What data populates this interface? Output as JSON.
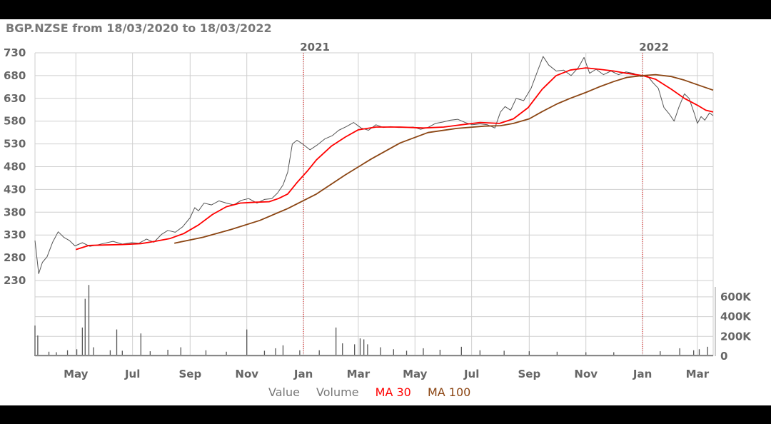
{
  "chart_data": {
    "type": "line",
    "title": "BGP.NZSE from 18/03/2020 to 18/03/2022",
    "price_axis": {
      "ticks": [
        230,
        280,
        330,
        380,
        430,
        480,
        530,
        580,
        630,
        680,
        730
      ],
      "range": [
        230,
        730
      ]
    },
    "volume_axis": {
      "ticks": [
        "0",
        "200K",
        "400K",
        "600K"
      ],
      "range": [
        0,
        700000
      ]
    },
    "x_axis": {
      "month_ticks": [
        "May",
        "Jul",
        "Sep",
        "Nov",
        "Jan",
        "Mar",
        "May",
        "Jul",
        "Sep",
        "Nov",
        "Jan",
        "Mar"
      ],
      "month_dates": [
        "2020-05-01",
        "2020-07-01",
        "2020-09-01",
        "2020-11-01",
        "2021-01-01",
        "2021-03-01",
        "2021-05-01",
        "2021-07-01",
        "2021-09-01",
        "2021-11-01",
        "2022-01-01",
        "2022-03-01"
      ],
      "year_markers": [
        {
          "label": "2021",
          "date": "2021-01-01"
        },
        {
          "label": "2022",
          "date": "2022-01-01"
        }
      ],
      "start": "2020-03-18",
      "end": "2022-03-18"
    },
    "series": [
      {
        "name": "Value",
        "color": "#555555",
        "points": [
          [
            "2020-03-18",
            318
          ],
          [
            "2020-03-22",
            245
          ],
          [
            "2020-03-26",
            270
          ],
          [
            "2020-03-31",
            282
          ],
          [
            "2020-04-06",
            314
          ],
          [
            "2020-04-12",
            337
          ],
          [
            "2020-04-18",
            325
          ],
          [
            "2020-04-24",
            318
          ],
          [
            "2020-04-30",
            306
          ],
          [
            "2020-05-08",
            313
          ],
          [
            "2020-05-16",
            305
          ],
          [
            "2020-05-24",
            308
          ],
          [
            "2020-06-01",
            312
          ],
          [
            "2020-06-10",
            316
          ],
          [
            "2020-06-20",
            310
          ],
          [
            "2020-06-30",
            313
          ],
          [
            "2020-07-08",
            312
          ],
          [
            "2020-07-16",
            321
          ],
          [
            "2020-07-24",
            314
          ],
          [
            "2020-08-01",
            331
          ],
          [
            "2020-08-08",
            340
          ],
          [
            "2020-08-16",
            336
          ],
          [
            "2020-08-24",
            348
          ],
          [
            "2020-09-01",
            368
          ],
          [
            "2020-09-06",
            390
          ],
          [
            "2020-09-10",
            383
          ],
          [
            "2020-09-16",
            400
          ],
          [
            "2020-09-24",
            396
          ],
          [
            "2020-10-02",
            405
          ],
          [
            "2020-10-10",
            400
          ],
          [
            "2020-10-18",
            396
          ],
          [
            "2020-10-26",
            406
          ],
          [
            "2020-11-03",
            410
          ],
          [
            "2020-11-12",
            400
          ],
          [
            "2020-11-20",
            408
          ],
          [
            "2020-11-28",
            410
          ],
          [
            "2020-12-04",
            422
          ],
          [
            "2020-12-10",
            440
          ],
          [
            "2020-12-15",
            468
          ],
          [
            "2020-12-20",
            530
          ],
          [
            "2020-12-25",
            538
          ],
          [
            "2020-12-31",
            530
          ],
          [
            "2021-01-08",
            517
          ],
          [
            "2021-01-16",
            528
          ],
          [
            "2021-01-24",
            541
          ],
          [
            "2021-02-01",
            548
          ],
          [
            "2021-02-08",
            560
          ],
          [
            "2021-02-16",
            568
          ],
          [
            "2021-02-24",
            577
          ],
          [
            "2021-03-04",
            565
          ],
          [
            "2021-03-12",
            560
          ],
          [
            "2021-03-20",
            572
          ],
          [
            "2021-03-28",
            566
          ],
          [
            "2021-04-05",
            568
          ],
          [
            "2021-04-13",
            566
          ],
          [
            "2021-04-21",
            566
          ],
          [
            "2021-04-29",
            567
          ],
          [
            "2021-05-07",
            562
          ],
          [
            "2021-05-15",
            566
          ],
          [
            "2021-05-23",
            575
          ],
          [
            "2021-05-31",
            578
          ],
          [
            "2021-06-08",
            582
          ],
          [
            "2021-06-16",
            584
          ],
          [
            "2021-06-24",
            577
          ],
          [
            "2021-07-02",
            572
          ],
          [
            "2021-07-10",
            574
          ],
          [
            "2021-07-18",
            572
          ],
          [
            "2021-07-26",
            565
          ],
          [
            "2021-08-01",
            600
          ],
          [
            "2021-08-06",
            612
          ],
          [
            "2021-08-12",
            604
          ],
          [
            "2021-08-18",
            630
          ],
          [
            "2021-08-26",
            625
          ],
          [
            "2021-09-03",
            652
          ],
          [
            "2021-09-10",
            690
          ],
          [
            "2021-09-16",
            722
          ],
          [
            "2021-09-22",
            703
          ],
          [
            "2021-09-30",
            690
          ],
          [
            "2021-10-08",
            692
          ],
          [
            "2021-10-16",
            680
          ],
          [
            "2021-10-24",
            698
          ],
          [
            "2021-10-30",
            720
          ],
          [
            "2021-11-05",
            685
          ],
          [
            "2021-11-12",
            694
          ],
          [
            "2021-11-20",
            682
          ],
          [
            "2021-11-28",
            690
          ],
          [
            "2021-12-06",
            682
          ],
          [
            "2021-12-14",
            688
          ],
          [
            "2021-12-22",
            685
          ],
          [
            "2021-12-30",
            678
          ],
          [
            "2022-01-06",
            680
          ],
          [
            "2022-01-12",
            665
          ],
          [
            "2022-01-18",
            652
          ],
          [
            "2022-01-24",
            610
          ],
          [
            "2022-01-30",
            595
          ],
          [
            "2022-02-04",
            580
          ],
          [
            "2022-02-09",
            610
          ],
          [
            "2022-02-15",
            640
          ],
          [
            "2022-02-20",
            630
          ],
          [
            "2022-02-26",
            595
          ],
          [
            "2022-03-01",
            575
          ],
          [
            "2022-03-05",
            590
          ],
          [
            "2022-03-09",
            582
          ],
          [
            "2022-03-14",
            598
          ],
          [
            "2022-03-18",
            592
          ]
        ]
      },
      {
        "name": "MA 30",
        "color": "#ff0000",
        "points": [
          [
            "2020-05-01",
            298
          ],
          [
            "2020-05-15",
            307
          ],
          [
            "2020-06-01",
            308
          ],
          [
            "2020-06-20",
            309
          ],
          [
            "2020-07-10",
            311
          ],
          [
            "2020-07-25",
            316
          ],
          [
            "2020-08-10",
            322
          ],
          [
            "2020-08-25",
            333
          ],
          [
            "2020-09-10",
            352
          ],
          [
            "2020-09-25",
            375
          ],
          [
            "2020-10-10",
            392
          ],
          [
            "2020-10-25",
            400
          ],
          [
            "2020-11-10",
            402
          ],
          [
            "2020-11-25",
            403
          ],
          [
            "2020-12-05",
            410
          ],
          [
            "2020-12-15",
            420
          ],
          [
            "2020-12-25",
            445
          ],
          [
            "2021-01-05",
            470
          ],
          [
            "2021-01-15",
            495
          ],
          [
            "2021-01-31",
            525
          ],
          [
            "2021-02-15",
            545
          ],
          [
            "2021-03-01",
            561
          ],
          [
            "2021-03-20",
            567
          ],
          [
            "2021-04-15",
            567
          ],
          [
            "2021-05-10",
            565
          ],
          [
            "2021-06-01",
            567
          ],
          [
            "2021-06-20",
            572
          ],
          [
            "2021-07-10",
            577
          ],
          [
            "2021-07-31",
            575
          ],
          [
            "2021-08-15",
            585
          ],
          [
            "2021-08-31",
            610
          ],
          [
            "2021-09-15",
            650
          ],
          [
            "2021-09-30",
            680
          ],
          [
            "2021-10-15",
            692
          ],
          [
            "2021-11-01",
            697
          ],
          [
            "2021-11-15",
            694
          ],
          [
            "2021-12-01",
            690
          ],
          [
            "2021-12-15",
            685
          ],
          [
            "2022-01-01",
            680
          ],
          [
            "2022-01-15",
            672
          ],
          [
            "2022-02-01",
            650
          ],
          [
            "2022-02-15",
            630
          ],
          [
            "2022-03-01",
            615
          ],
          [
            "2022-03-10",
            604
          ],
          [
            "2022-03-18",
            600
          ]
        ]
      },
      {
        "name": "MA 100",
        "color": "#8b4513",
        "points": [
          [
            "2020-08-15",
            312
          ],
          [
            "2020-09-15",
            325
          ],
          [
            "2020-10-15",
            342
          ],
          [
            "2020-11-15",
            362
          ],
          [
            "2020-12-15",
            388
          ],
          [
            "2021-01-15",
            420
          ],
          [
            "2021-02-15",
            462
          ],
          [
            "2021-03-15",
            497
          ],
          [
            "2021-04-15",
            532
          ],
          [
            "2021-05-15",
            555
          ],
          [
            "2021-06-15",
            564
          ],
          [
            "2021-07-15",
            569
          ],
          [
            "2021-08-01",
            570
          ],
          [
            "2021-08-15",
            575
          ],
          [
            "2021-09-01",
            585
          ],
          [
            "2021-09-15",
            601
          ],
          [
            "2021-10-01",
            618
          ],
          [
            "2021-10-15",
            630
          ],
          [
            "2021-11-01",
            643
          ],
          [
            "2021-11-15",
            655
          ],
          [
            "2021-12-01",
            667
          ],
          [
            "2021-12-15",
            676
          ],
          [
            "2022-01-01",
            680
          ],
          [
            "2022-01-15",
            682
          ],
          [
            "2022-02-01",
            678
          ],
          [
            "2022-02-15",
            670
          ],
          [
            "2022-03-01",
            660
          ],
          [
            "2022-03-18",
            648
          ]
        ]
      }
    ],
    "volume": {
      "name": "Volume",
      "color": "#555555",
      "bars": [
        [
          "2020-03-18",
          310000
        ],
        [
          "2020-03-21",
          210000
        ],
        [
          "2020-04-02",
          45000
        ],
        [
          "2020-04-10",
          40000
        ],
        [
          "2020-04-22",
          60000
        ],
        [
          "2020-05-02",
          70000
        ],
        [
          "2020-05-08",
          290000
        ],
        [
          "2020-05-11",
          580000
        ],
        [
          "2020-05-15",
          720000
        ],
        [
          "2020-05-20",
          90000
        ],
        [
          "2020-06-07",
          60000
        ],
        [
          "2020-06-14",
          270000
        ],
        [
          "2020-06-20",
          55000
        ],
        [
          "2020-07-10",
          230000
        ],
        [
          "2020-07-20",
          50000
        ],
        [
          "2020-08-08",
          65000
        ],
        [
          "2020-08-22",
          90000
        ],
        [
          "2020-09-18",
          60000
        ],
        [
          "2020-10-10",
          45000
        ],
        [
          "2020-11-01",
          270000
        ],
        [
          "2020-11-20",
          55000
        ],
        [
          "2020-12-02",
          80000
        ],
        [
          "2020-12-10",
          110000
        ],
        [
          "2020-12-28",
          60000
        ],
        [
          "2021-01-18",
          60000
        ],
        [
          "2021-02-05",
          290000
        ],
        [
          "2021-02-12",
          130000
        ],
        [
          "2021-02-25",
          120000
        ],
        [
          "2021-03-03",
          180000
        ],
        [
          "2021-03-07",
          170000
        ],
        [
          "2021-03-11",
          120000
        ],
        [
          "2021-03-25",
          90000
        ],
        [
          "2021-04-08",
          70000
        ],
        [
          "2021-04-22",
          55000
        ],
        [
          "2021-05-10",
          80000
        ],
        [
          "2021-05-28",
          65000
        ],
        [
          "2021-06-20",
          95000
        ],
        [
          "2021-07-10",
          60000
        ],
        [
          "2021-08-05",
          55000
        ],
        [
          "2021-09-01",
          50000
        ],
        [
          "2021-10-01",
          45000
        ],
        [
          "2021-11-01",
          40000
        ],
        [
          "2021-12-01",
          40000
        ],
        [
          "2022-01-20",
          50000
        ],
        [
          "2022-02-10",
          80000
        ],
        [
          "2022-02-25",
          60000
        ],
        [
          "2022-03-03",
          70000
        ],
        [
          "2022-03-12",
          95000
        ]
      ]
    }
  },
  "legend": {
    "value_label": "Value",
    "volume_label": "Volume",
    "ma30_label": "MA 30",
    "ma100_label": "MA 100",
    "value_color": "#777777",
    "volume_color": "#777777",
    "ma30_color": "#ff0000",
    "ma100_color": "#8b4513"
  }
}
